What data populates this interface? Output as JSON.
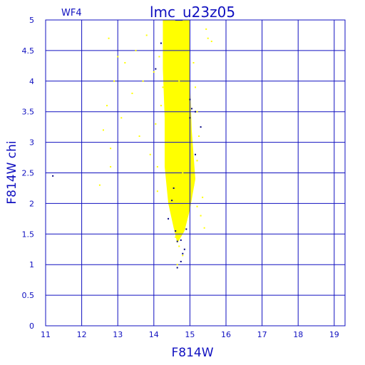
{
  "chart_data": {
    "type": "scatter",
    "title": "lmc_u23z05",
    "panel_label": "WF4",
    "xlabel": "F814W",
    "ylabel": "F814W  chi",
    "xlim": [
      11,
      19.3
    ],
    "ylim": [
      0,
      5
    ],
    "x_ticks": [
      "11",
      "12",
      "13",
      "14",
      "15",
      "16",
      "17",
      "18",
      "19"
    ],
    "y_ticks": [
      "0",
      "0.5",
      "1",
      "1.5",
      "2",
      "2.5",
      "3",
      "3.5",
      "4",
      "4.5",
      "5"
    ],
    "grid": true,
    "colors": {
      "axis": "#1010c0",
      "grid": "#1010c0",
      "points_main": "#ffff00",
      "points_flagged": "#000080",
      "background": "#ffffff"
    },
    "series": [
      {
        "color": "#ffff00",
        "points": [
          [
            14.35,
            4.9
          ],
          [
            14.42,
            4.75
          ],
          [
            14.5,
            4.6
          ],
          [
            14.55,
            4.45
          ],
          [
            14.6,
            4.3
          ],
          [
            14.65,
            4.15
          ],
          [
            14.7,
            4.0
          ],
          [
            14.75,
            3.85
          ],
          [
            14.8,
            3.7
          ],
          [
            14.85,
            3.55
          ],
          [
            14.9,
            3.4
          ],
          [
            14.95,
            3.25
          ],
          [
            14.4,
            3.1
          ],
          [
            14.5,
            2.95
          ],
          [
            14.6,
            2.8
          ],
          [
            14.7,
            2.65
          ],
          [
            14.8,
            2.5
          ],
          [
            14.9,
            2.35
          ],
          [
            14.45,
            2.2
          ],
          [
            14.55,
            2.05
          ],
          [
            14.65,
            1.9
          ],
          [
            14.75,
            1.75
          ],
          [
            14.85,
            1.6
          ],
          [
            14.6,
            1.45
          ],
          [
            14.7,
            1.3
          ],
          [
            14.8,
            1.15
          ],
          [
            14.65,
            1.0
          ],
          [
            14.3,
            4.2
          ],
          [
            14.25,
            3.9
          ],
          [
            14.2,
            3.6
          ],
          [
            15.1,
            4.3
          ],
          [
            15.15,
            3.9
          ],
          [
            15.2,
            3.5
          ],
          [
            15.25,
            3.1
          ],
          [
            15.2,
            2.7
          ],
          [
            15.1,
            2.3
          ],
          [
            15.3,
            1.8
          ],
          [
            15.4,
            1.6
          ],
          [
            15.5,
            4.7
          ],
          [
            15.6,
            4.65
          ],
          [
            15.45,
            4.85
          ],
          [
            13.8,
            4.75
          ],
          [
            13.5,
            4.5
          ],
          [
            13.2,
            4.3
          ],
          [
            12.9,
            4.0
          ],
          [
            12.7,
            3.6
          ],
          [
            12.6,
            3.2
          ],
          [
            12.8,
            2.9
          ],
          [
            13.1,
            3.4
          ],
          [
            13.4,
            3.8
          ],
          [
            13.6,
            3.1
          ],
          [
            13.9,
            2.8
          ],
          [
            14.05,
            3.3
          ],
          [
            14.1,
            2.6
          ],
          [
            14.1,
            2.2
          ],
          [
            14.15,
            4.4
          ],
          [
            12.8,
            2.6
          ],
          [
            12.5,
            2.3
          ],
          [
            13.0,
            4.4
          ],
          [
            12.75,
            4.7
          ],
          [
            14.0,
            4.15
          ],
          [
            13.7,
            4.0
          ],
          [
            15.35,
            2.1
          ],
          [
            15.2,
            1.95
          ],
          [
            14.95,
            4.9
          ],
          [
            14.55,
            4.95
          ]
        ]
      },
      {
        "color": "#000080",
        "points": [
          [
            11.2,
            2.45
          ],
          [
            14.05,
            4.2
          ],
          [
            14.2,
            4.62
          ],
          [
            14.4,
            1.75
          ],
          [
            14.5,
            2.05
          ],
          [
            14.55,
            2.25
          ],
          [
            14.6,
            1.55
          ],
          [
            14.65,
            1.38
          ],
          [
            14.75,
            1.4
          ],
          [
            14.8,
            1.18
          ],
          [
            14.85,
            1.25
          ],
          [
            14.9,
            1.58
          ],
          [
            15.0,
            3.4
          ],
          [
            15.05,
            3.55
          ],
          [
            15.15,
            3.5
          ],
          [
            15.15,
            2.8
          ],
          [
            15.3,
            3.25
          ],
          [
            14.65,
            0.95
          ],
          [
            14.75,
            1.05
          ],
          [
            15.0,
            3.7
          ]
        ]
      }
    ]
  }
}
